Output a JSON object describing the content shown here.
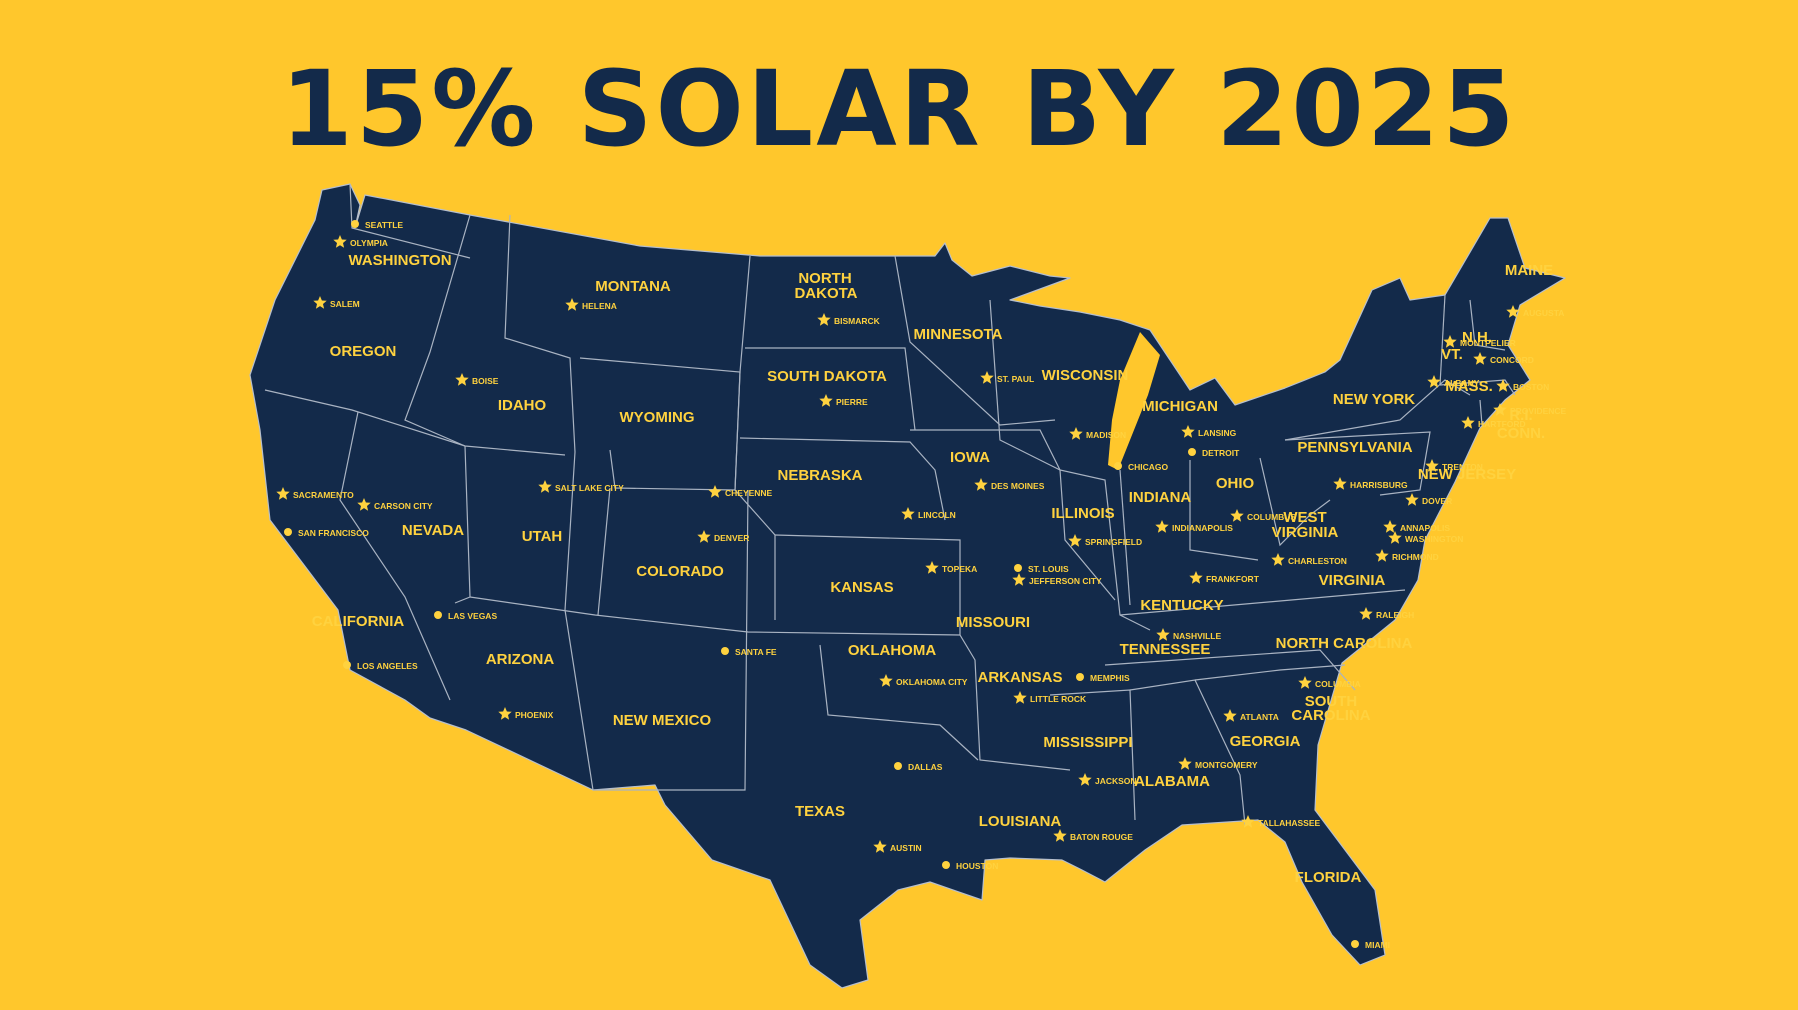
{
  "title": "15% SOLAR BY 2025",
  "colors": {
    "background": "#FFC72C",
    "map_fill": "#132A4A",
    "label": "#FFD23F",
    "title": "#132A4A"
  },
  "state_labels": [
    {
      "name": "washington",
      "text": "WASHINGTON"
    },
    {
      "name": "oregon",
      "text": "OREGON"
    },
    {
      "name": "california",
      "text": "CALIFORNIA"
    },
    {
      "name": "nevada",
      "text": "NEVADA"
    },
    {
      "name": "idaho",
      "text": "IDAHO"
    },
    {
      "name": "montana",
      "text": "MONTANA"
    },
    {
      "name": "wyoming",
      "text": "WYOMING"
    },
    {
      "name": "utah",
      "text": "UTAH"
    },
    {
      "name": "arizona",
      "text": "ARIZONA"
    },
    {
      "name": "colorado",
      "text": "COLORADO"
    },
    {
      "name": "new-mexico",
      "text": "NEW MEXICO"
    },
    {
      "name": "north-dakota-1",
      "text": "NORTH"
    },
    {
      "name": "north-dakota-2",
      "text": "DAKOTA"
    },
    {
      "name": "south-dakota",
      "text": "SOUTH DAKOTA"
    },
    {
      "name": "nebraska",
      "text": "NEBRASKA"
    },
    {
      "name": "kansas",
      "text": "KANSAS"
    },
    {
      "name": "oklahoma",
      "text": "OKLAHOMA"
    },
    {
      "name": "texas",
      "text": "TEXAS"
    },
    {
      "name": "minnesota",
      "text": "MINNESOTA"
    },
    {
      "name": "iowa",
      "text": "IOWA"
    },
    {
      "name": "missouri",
      "text": "MISSOURI"
    },
    {
      "name": "arkansas",
      "text": "ARKANSAS"
    },
    {
      "name": "louisiana",
      "text": "LOUISIANA"
    },
    {
      "name": "wisconsin",
      "text": "WISCONSIN"
    },
    {
      "name": "illinois",
      "text": "ILLINOIS"
    },
    {
      "name": "michigan",
      "text": "MICHIGAN"
    },
    {
      "name": "indiana",
      "text": "INDIANA"
    },
    {
      "name": "ohio",
      "text": "OHIO"
    },
    {
      "name": "kentucky",
      "text": "KENTUCKY"
    },
    {
      "name": "tennessee",
      "text": "TENNESSEE"
    },
    {
      "name": "mississippi",
      "text": "MISSISSIPPI"
    },
    {
      "name": "alabama",
      "text": "ALABAMA"
    },
    {
      "name": "georgia",
      "text": "GEORGIA"
    },
    {
      "name": "florida",
      "text": "FLORIDA"
    },
    {
      "name": "south-carolina-1",
      "text": "SOUTH"
    },
    {
      "name": "south-carolina-2",
      "text": "CAROLINA"
    },
    {
      "name": "north-carolina",
      "text": "NORTH CAROLINA"
    },
    {
      "name": "virginia",
      "text": "VIRGINIA"
    },
    {
      "name": "west-virginia-1",
      "text": "WEST"
    },
    {
      "name": "west-virginia-2",
      "text": "VIRGINIA"
    },
    {
      "name": "pennsylvania",
      "text": "PENNSYLVANIA"
    },
    {
      "name": "new-york",
      "text": "NEW YORK"
    },
    {
      "name": "vermont",
      "text": "VT."
    },
    {
      "name": "new-hampshire",
      "text": "N.H."
    },
    {
      "name": "maine",
      "text": "MAINE"
    },
    {
      "name": "massachusetts",
      "text": "MASS."
    },
    {
      "name": "rhode-island",
      "text": "R.I."
    },
    {
      "name": "connecticut",
      "text": "CONN."
    },
    {
      "name": "new-jersey",
      "text": "NEW JERSEY"
    }
  ],
  "cities": [
    {
      "name": "seattle",
      "text": "SEATTLE",
      "marker": "dot"
    },
    {
      "name": "olympia",
      "text": "OLYMPIA",
      "marker": "star"
    },
    {
      "name": "salem",
      "text": "SALEM",
      "marker": "star"
    },
    {
      "name": "boise",
      "text": "BOISE",
      "marker": "star"
    },
    {
      "name": "helena",
      "text": "HELENA",
      "marker": "star"
    },
    {
      "name": "bismarck",
      "text": "BISMARCK",
      "marker": "star"
    },
    {
      "name": "pierre",
      "text": "PIERRE",
      "marker": "star"
    },
    {
      "name": "st-paul",
      "text": "ST. PAUL",
      "marker": "star"
    },
    {
      "name": "madison",
      "text": "MADISON",
      "marker": "star"
    },
    {
      "name": "lansing",
      "text": "LANSING",
      "marker": "star"
    },
    {
      "name": "detroit",
      "text": "DETROIT",
      "marker": "dot"
    },
    {
      "name": "chicago",
      "text": "CHICAGO",
      "marker": "dot"
    },
    {
      "name": "des-moines",
      "text": "DES MOINES",
      "marker": "star"
    },
    {
      "name": "lincoln",
      "text": "LINCOLN",
      "marker": "star"
    },
    {
      "name": "cheyenne",
      "text": "CHEYENNE",
      "marker": "star"
    },
    {
      "name": "salt-lake-city",
      "text": "SALT LAKE CITY",
      "marker": "star"
    },
    {
      "name": "carson-city",
      "text": "CARSON CITY",
      "marker": "star"
    },
    {
      "name": "sacramento",
      "text": "SACRAMENTO",
      "marker": "star"
    },
    {
      "name": "san-francisco",
      "text": "SAN FRANCISCO",
      "marker": "dot"
    },
    {
      "name": "las-vegas",
      "text": "LAS VEGAS",
      "marker": "dot"
    },
    {
      "name": "los-angeles",
      "text": "LOS ANGELES",
      "marker": "dot"
    },
    {
      "name": "phoenix",
      "text": "PHOENIX",
      "marker": "star"
    },
    {
      "name": "denver",
      "text": "DENVER",
      "marker": "star"
    },
    {
      "name": "santa-fe",
      "text": "SANTA FE",
      "marker": "dot"
    },
    {
      "name": "topeka",
      "text": "TOPEKA",
      "marker": "star"
    },
    {
      "name": "oklahoma-city",
      "text": "OKLAHOMA CITY",
      "marker": "star"
    },
    {
      "name": "dallas",
      "text": "DALLAS",
      "marker": "dot"
    },
    {
      "name": "austin",
      "text": "AUSTIN",
      "marker": "star"
    },
    {
      "name": "houston",
      "text": "HOUSTON",
      "marker": "dot"
    },
    {
      "name": "st-louis",
      "text": "ST. LOUIS",
      "marker": "dot"
    },
    {
      "name": "jefferson-city",
      "text": "JEFFERSON CITY",
      "marker": "star"
    },
    {
      "name": "little-rock",
      "text": "LITTLE ROCK",
      "marker": "star"
    },
    {
      "name": "memphis",
      "text": "MEMPHIS",
      "marker": "dot"
    },
    {
      "name": "baton-rouge",
      "text": "BATON ROUGE",
      "marker": "star"
    },
    {
      "name": "jackson",
      "text": "JACKSON",
      "marker": "star"
    },
    {
      "name": "montgomery",
      "text": "MONTGOMERY",
      "marker": "star"
    },
    {
      "name": "atlanta",
      "text": "ATLANTA",
      "marker": "star"
    },
    {
      "name": "tallahassee",
      "text": "TALLAHASSEE",
      "marker": "star"
    },
    {
      "name": "miami",
      "text": "MIAMI",
      "marker": "dot"
    },
    {
      "name": "springfield",
      "text": "SPRINGFIELD",
      "marker": "star"
    },
    {
      "name": "indianapolis",
      "text": "INDIANAPOLIS",
      "marker": "star"
    },
    {
      "name": "columbus",
      "text": "COLUMBUS",
      "marker": "star"
    },
    {
      "name": "frankfort",
      "text": "FRANKFORT",
      "marker": "star"
    },
    {
      "name": "nashville",
      "text": "NASHVILLE",
      "marker": "star"
    },
    {
      "name": "charleston",
      "text": "CHARLESTON",
      "marker": "star"
    },
    {
      "name": "richmond",
      "text": "RICHMOND",
      "marker": "star"
    },
    {
      "name": "raleigh",
      "text": "RALEIGH",
      "marker": "star"
    },
    {
      "name": "columbia",
      "text": "COLUMBIA",
      "marker": "star"
    },
    {
      "name": "harrisburg",
      "text": "HARRISBURG",
      "marker": "star"
    },
    {
      "name": "albany",
      "text": "ALBANY",
      "marker": "star"
    },
    {
      "name": "montpelier",
      "text": "MONTPELIER",
      "marker": "star"
    },
    {
      "name": "augusta",
      "text": "AUGUSTA",
      "marker": "star"
    },
    {
      "name": "concord",
      "text": "CONCORD",
      "marker": "star"
    },
    {
      "name": "boston",
      "text": "BOSTON",
      "marker": "star"
    },
    {
      "name": "providence",
      "text": "PROVIDENCE",
      "marker": "star"
    },
    {
      "name": "hartford",
      "text": "HARTFORD",
      "marker": "star"
    },
    {
      "name": "trenton",
      "text": "TRENTON",
      "marker": "star"
    },
    {
      "name": "dover",
      "text": "DOVER",
      "marker": "star"
    },
    {
      "name": "annapolis",
      "text": "ANNAPOLIS",
      "marker": "star"
    },
    {
      "name": "washington-dc",
      "text": "WASHINGTON",
      "marker": "star"
    }
  ]
}
